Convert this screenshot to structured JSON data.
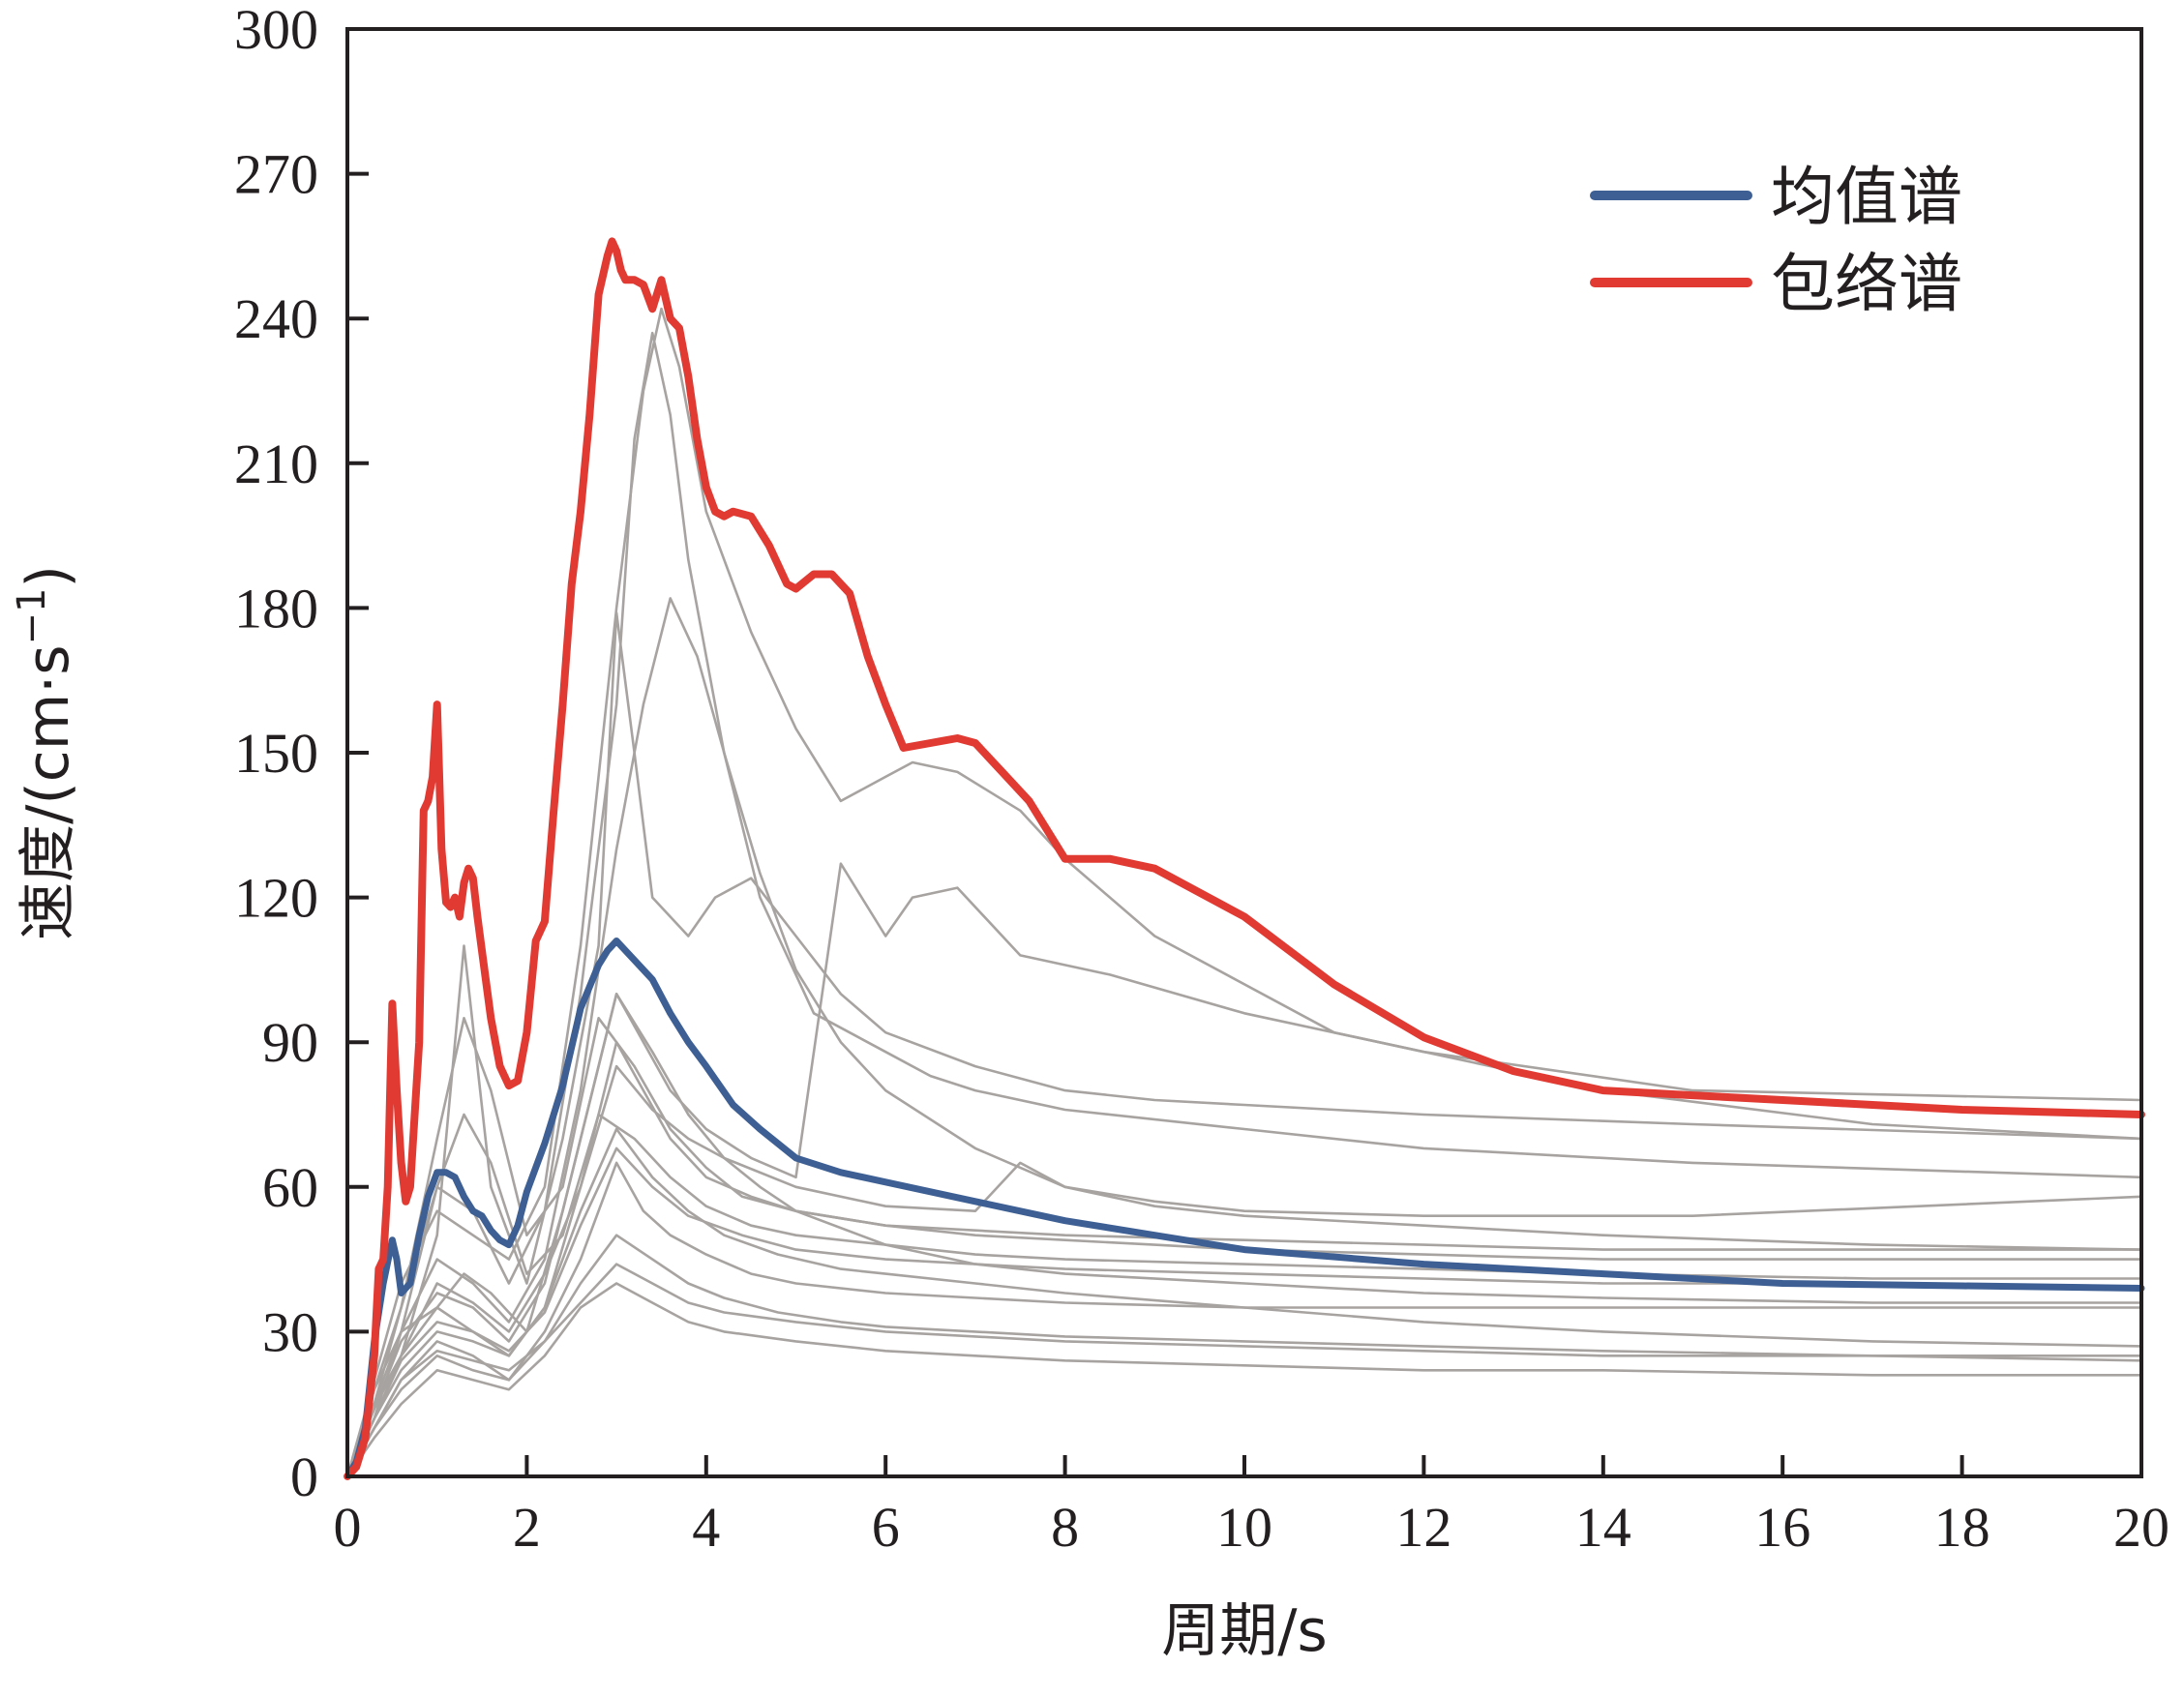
{
  "chart_data": {
    "type": "line",
    "xlabel": "周期/s",
    "ylabel_main": "速度/(cm·s",
    "ylabel_sup": "−1",
    "ylabel_end": ")",
    "xlim": [
      0,
      20
    ],
    "ylim": [
      0,
      300
    ],
    "xticks": [
      0,
      2,
      4,
      6,
      8,
      10,
      12,
      14,
      16,
      18,
      20
    ],
    "yticks": [
      0,
      30,
      60,
      90,
      120,
      150,
      180,
      210,
      240,
      270,
      300
    ],
    "grid": false,
    "legend_position": "top-right",
    "series": [
      {
        "name": "均值谱",
        "color": "#3d5f93",
        "x": [
          0,
          0.1,
          0.2,
          0.3,
          0.4,
          0.5,
          0.55,
          0.6,
          0.7,
          0.8,
          0.9,
          1.0,
          1.1,
          1.2,
          1.3,
          1.4,
          1.5,
          1.6,
          1.7,
          1.8,
          1.9,
          2.0,
          2.2,
          2.4,
          2.6,
          2.8,
          2.9,
          3.0,
          3.1,
          3.2,
          3.4,
          3.6,
          3.8,
          4.0,
          4.3,
          4.6,
          5.0,
          5.5,
          6.0,
          7.0,
          8.0,
          9.0,
          10.0,
          12.0,
          14.0,
          16.0,
          18.0,
          20.0
        ],
        "y": [
          0,
          3,
          10,
          28,
          40,
          49,
          45,
          38,
          40,
          50,
          58,
          63,
          63,
          62,
          58,
          55,
          54,
          51,
          49,
          48,
          52,
          59,
          69,
          81,
          97,
          106,
          109,
          111,
          109,
          107,
          103,
          96,
          90,
          85,
          77,
          72,
          66,
          63,
          61,
          57,
          53,
          50,
          47,
          44,
          42,
          40,
          39.5,
          39
        ]
      },
      {
        "name": "包络谱",
        "color": "#e03a33",
        "x": [
          0,
          0.1,
          0.2,
          0.3,
          0.35,
          0.4,
          0.45,
          0.5,
          0.55,
          0.6,
          0.65,
          0.7,
          0.8,
          0.85,
          0.9,
          0.95,
          1.0,
          1.05,
          1.1,
          1.15,
          1.2,
          1.25,
          1.3,
          1.35,
          1.4,
          1.45,
          1.5,
          1.6,
          1.7,
          1.8,
          1.9,
          2.0,
          2.1,
          2.2,
          2.3,
          2.4,
          2.5,
          2.6,
          2.7,
          2.8,
          2.9,
          2.95,
          3.0,
          3.05,
          3.1,
          3.2,
          3.3,
          3.4,
          3.5,
          3.6,
          3.7,
          3.8,
          3.9,
          4.0,
          4.1,
          4.2,
          4.3,
          4.5,
          4.7,
          4.9,
          5.0,
          5.2,
          5.4,
          5.6,
          5.8,
          6.0,
          6.2,
          6.5,
          6.8,
          7.0,
          7.3,
          7.6,
          8.0,
          8.5,
          9.0,
          10.0,
          11.0,
          12.0,
          13.0,
          14.0,
          15.0,
          16.0,
          17.0,
          18.0,
          19.0,
          20.0
        ],
        "y": [
          0,
          2,
          8,
          25,
          43,
          45,
          60,
          98,
          80,
          65,
          57,
          60,
          90,
          138,
          140,
          145,
          160,
          130,
          119,
          118,
          120,
          116,
          123,
          126,
          124,
          116,
          109,
          95,
          85,
          81,
          82,
          92,
          111,
          115,
          138,
          160,
          185,
          200,
          220,
          245,
          253,
          256,
          254,
          250,
          248,
          248,
          247,
          242,
          248,
          240,
          238,
          228,
          215,
          205,
          200,
          199,
          200,
          199,
          193,
          185,
          184,
          187,
          187,
          183,
          170,
          160,
          151,
          152,
          153,
          152,
          146,
          140,
          128,
          128,
          126,
          116,
          102,
          91,
          84,
          80,
          79,
          78,
          77,
          76,
          75.5,
          75
        ]
      }
    ],
    "background_series": [
      {
        "x": [
          0,
          0.3,
          0.6,
          1.0,
          1.4,
          1.8,
          2.2,
          2.6,
          3.0,
          3.3,
          3.5,
          3.7,
          4.0,
          4.5,
          5.0,
          5.5,
          6.0,
          6.3,
          6.8,
          7.5,
          8.0,
          9.0,
          11.0,
          14.0,
          17.0,
          20.0
        ],
        "y": [
          0,
          20,
          40,
          55,
          50,
          45,
          60,
          110,
          180,
          225,
          242,
          230,
          200,
          175,
          155,
          140,
          145,
          148,
          146,
          138,
          128,
          112,
          92,
          80,
          73,
          70
        ]
      },
      {
        "x": [
          0,
          0.3,
          0.6,
          1.0,
          1.4,
          1.8,
          2.2,
          2.6,
          3.0,
          3.2,
          3.4,
          3.6,
          3.8,
          4.2,
          4.6,
          5.2,
          6.0,
          6.5,
          7.0,
          8.0,
          10.0,
          12.0,
          15.0,
          20.0
        ],
        "y": [
          0,
          18,
          35,
          60,
          55,
          40,
          55,
          100,
          160,
          215,
          237,
          220,
          190,
          150,
          120,
          96,
          88,
          83,
          80,
          76,
          72,
          68,
          65,
          62
        ]
      },
      {
        "x": [
          0,
          0.3,
          0.6,
          1.0,
          1.4,
          1.8,
          2.2,
          2.6,
          3.0,
          3.3,
          3.6,
          3.9,
          4.2,
          4.6,
          5.0,
          5.5,
          6.0,
          7.0,
          8.0,
          9.0,
          10.0,
          12.0,
          15.0,
          20.0
        ],
        "y": [
          0,
          15,
          30,
          45,
          40,
          32,
          45,
          80,
          130,
          160,
          182,
          170,
          150,
          125,
          105,
          90,
          80,
          68,
          60,
          57,
          55,
          54,
          54,
          58
        ]
      },
      {
        "x": [
          0,
          0.3,
          0.6,
          1.0,
          1.3,
          1.6,
          2.0,
          2.4,
          2.8,
          3.0,
          3.2,
          3.4,
          3.8,
          4.1,
          4.5,
          5.0,
          5.5,
          6.0,
          7.0,
          8.0,
          9.0,
          10.0,
          11.0,
          12.0,
          15.0,
          20.0
        ],
        "y": [
          0,
          15,
          25,
          50,
          110,
          60,
          40,
          70,
          110,
          179,
          150,
          120,
          112,
          120,
          124,
          112,
          100,
          92,
          85,
          80,
          78,
          77,
          76,
          75,
          73,
          70
        ]
      },
      {
        "x": [
          0,
          0.3,
          0.6,
          1.0,
          1.3,
          1.6,
          2.0,
          2.4,
          2.8,
          3.0,
          3.3,
          3.6,
          4.0,
          4.5,
          5.0,
          5.5,
          6.0,
          6.3,
          6.8,
          7.5,
          8.5,
          10.0,
          12.0,
          15.0,
          20.0
        ],
        "y": [
          0,
          12,
          25,
          35,
          42,
          38,
          30,
          55,
          85,
          100,
          90,
          80,
          72,
          66,
          62,
          127,
          112,
          120,
          122,
          108,
          104,
          96,
          88,
          80,
          78
        ]
      },
      {
        "x": [
          0,
          0.3,
          0.6,
          1.0,
          1.4,
          1.8,
          2.2,
          2.6,
          3.0,
          3.3,
          3.6,
          4.0,
          4.5,
          5.0,
          6.0,
          7.0,
          8.0,
          9.0,
          10.0,
          12.0,
          14.0,
          17.0,
          20.0
        ],
        "y": [
          0,
          18,
          30,
          35,
          30,
          25,
          35,
          60,
          90,
          80,
          70,
          62,
          58,
          55,
          52,
          50,
          49,
          48,
          47,
          46,
          45,
          45,
          45
        ]
      },
      {
        "x": [
          0,
          0.3,
          0.6,
          1.0,
          1.4,
          1.8,
          2.2,
          2.6,
          3.0,
          3.3,
          3.6,
          4.0,
          4.5,
          5.0,
          6.0,
          7.0,
          8.0,
          10.0,
          12.0,
          14.0,
          17.0,
          20.0
        ],
        "y": [
          0,
          10,
          20,
          28,
          25,
          20,
          30,
          45,
          65,
          55,
          50,
          46,
          42,
          40,
          38,
          37,
          36,
          35,
          35,
          35,
          35,
          35
        ]
      },
      {
        "x": [
          0,
          0.3,
          0.6,
          1.0,
          1.4,
          1.8,
          2.2,
          2.6,
          3.0,
          3.4,
          3.8,
          4.2,
          4.6,
          5.0,
          6.0,
          7.0,
          8.0,
          10.0,
          12.0,
          14.0,
          17.0,
          20.0
        ],
        "y": [
          0,
          14,
          28,
          38,
          35,
          28,
          40,
          70,
          100,
          88,
          75,
          66,
          60,
          55,
          48,
          44,
          42,
          40,
          38,
          37,
          36,
          36
        ]
      },
      {
        "x": [
          0,
          0.3,
          0.6,
          1.0,
          1.4,
          1.8,
          2.2,
          2.6,
          3.0,
          3.4,
          3.8,
          4.2,
          4.8,
          5.5,
          6.0,
          7.0,
          8.0,
          10.0,
          12.0,
          14.0,
          17.0,
          20.0
        ],
        "y": [
          0,
          12,
          22,
          30,
          28,
          25,
          35,
          55,
          72,
          62,
          55,
          50,
          46,
          43,
          42,
          40,
          38,
          35,
          32,
          30,
          28,
          27
        ]
      },
      {
        "x": [
          0,
          0.3,
          0.6,
          1.0,
          1.4,
          1.8,
          2.2,
          2.6,
          3.0,
          3.4,
          3.8,
          4.2,
          4.8,
          5.5,
          6.0,
          7.0,
          8.0,
          10.0,
          12.0,
          14.0,
          17.0,
          20.0
        ],
        "y": [
          0,
          10,
          18,
          25,
          22,
          20,
          28,
          40,
          50,
          45,
          40,
          37,
          34,
          32,
          31,
          30,
          29,
          28,
          27,
          26,
          25,
          24
        ]
      },
      {
        "x": [
          0,
          0.3,
          0.6,
          1.0,
          1.4,
          1.8,
          2.2,
          2.6,
          3.0,
          3.4,
          3.8,
          4.2,
          5.0,
          6.0,
          7.0,
          8.0,
          10.0,
          12.0,
          14.0,
          17.0,
          20.0
        ],
        "y": [
          0,
          8,
          15,
          22,
          20,
          18,
          25,
          35,
          40,
          36,
          32,
          30,
          28,
          26,
          25,
          24,
          23,
          22,
          22,
          21,
          21
        ]
      },
      {
        "x": [
          0,
          0.3,
          0.6,
          1.0,
          1.3,
          1.6,
          2.0,
          2.4,
          2.8,
          3.2,
          3.6,
          4.0,
          4.4,
          5.0,
          6.0,
          7.0,
          8.0,
          10.0,
          12.0,
          14.0,
          17.0,
          20.0
        ],
        "y": [
          0,
          15,
          35,
          70,
          95,
          80,
          50,
          60,
          95,
          85,
          72,
          64,
          58,
          55,
          52,
          51,
          50,
          49,
          48,
          47,
          47,
          47
        ]
      },
      {
        "x": [
          0,
          0.3,
          0.6,
          1.0,
          1.3,
          1.6,
          2.0,
          2.4,
          2.8,
          3.2,
          3.6,
          4.0,
          4.5,
          5.0,
          6.0,
          7.0,
          8.0,
          10.0,
          12.0,
          14.0,
          17.0,
          20.0
        ],
        "y": [
          0,
          12,
          30,
          60,
          75,
          65,
          42,
          50,
          75,
          70,
          62,
          56,
          52,
          50,
          48,
          46,
          45,
          44,
          43,
          42,
          41,
          41
        ]
      },
      {
        "x": [
          0,
          0.3,
          0.6,
          1.0,
          1.4,
          1.8,
          2.2,
          2.6,
          3.0,
          3.4,
          3.8,
          4.2,
          5.0,
          6.0,
          7.0,
          7.5,
          8.0,
          9.0,
          10.0,
          12.0,
          14.0,
          17.0,
          20.0
        ],
        "y": [
          0,
          14,
          25,
          40,
          36,
          30,
          42,
          60,
          85,
          76,
          70,
          66,
          60,
          56,
          55,
          65,
          60,
          56,
          54,
          52,
          50,
          48,
          47
        ]
      },
      {
        "x": [
          0,
          0.3,
          0.6,
          1.0,
          1.4,
          1.8,
          2.2,
          2.6,
          3.0,
          3.4,
          3.8,
          4.2,
          5.0,
          6.0,
          7.0,
          8.0,
          10.0,
          12.0,
          14.0,
          17.0,
          20.0
        ],
        "y": [
          0,
          10,
          20,
          26,
          24,
          22,
          28,
          36,
          44,
          40,
          36,
          34,
          32,
          30,
          29,
          28,
          27,
          26,
          25,
          25,
          25
        ]
      },
      {
        "x": [
          0,
          0.3,
          0.6,
          1.0,
          1.4,
          1.8,
          2.2,
          2.6,
          3.0,
          3.4,
          3.8,
          4.4,
          5.0,
          6.0,
          7.0,
          8.0,
          10.0,
          12.0,
          14.0,
          17.0,
          20.0
        ],
        "y": [
          0,
          12,
          24,
          32,
          30,
          26,
          34,
          52,
          68,
          60,
          54,
          50,
          47,
          45,
          44,
          43,
          42,
          41,
          40,
          40,
          39
        ]
      }
    ]
  }
}
